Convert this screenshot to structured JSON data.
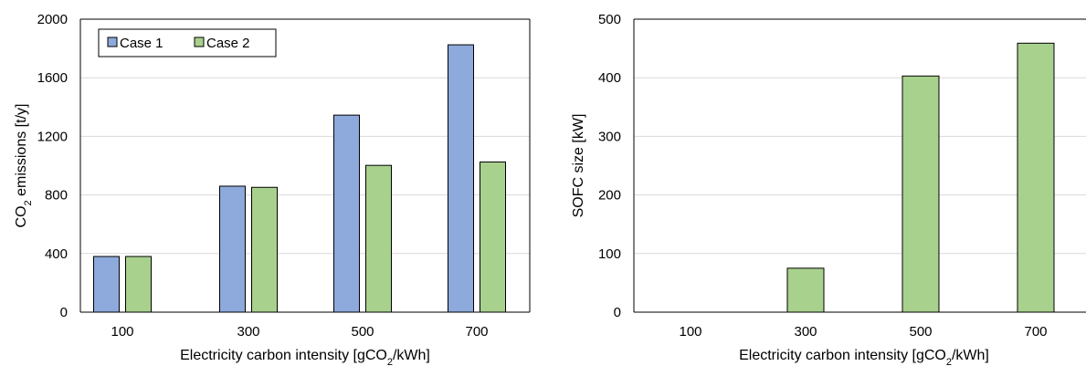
{
  "chart_data": [
    {
      "type": "bar",
      "categories": [
        "100",
        "300",
        "500",
        "700"
      ],
      "series": [
        {
          "name": "Case 1",
          "values": [
            380,
            860,
            1345,
            1825
          ],
          "color": "#8EA9DB"
        },
        {
          "name": "Case 2",
          "values": [
            380,
            852,
            1002,
            1025
          ],
          "color": "#A9D18E"
        }
      ],
      "xlabel": {
        "pre": "Electricity carbon intensity [gCO",
        "sub": "2",
        "post": "/kWh]"
      },
      "ylabel": {
        "pre": "CO",
        "sub": "2",
        "post": " emissions [t/y]"
      },
      "ylim": [
        0,
        2000
      ],
      "yticks": [
        "0",
        "400",
        "800",
        "1200",
        "1600",
        "2000"
      ],
      "grid": true,
      "legend": "top-left"
    },
    {
      "type": "bar",
      "categories": [
        "100",
        "300",
        "500",
        "700"
      ],
      "series": [
        {
          "values": [
            0,
            75,
            403,
            459
          ],
          "color": "#A9D18E"
        }
      ],
      "xlabel": {
        "pre": "Electricity carbon intensity [gCO",
        "sub": "2",
        "post": "/kWh]"
      },
      "ylabel": {
        "pre": "SOFC size [kW]",
        "sub": "",
        "post": ""
      },
      "ylim": [
        0,
        500
      ],
      "yticks": [
        "0",
        "100",
        "200",
        "300",
        "400",
        "500"
      ],
      "grid": true,
      "legend": "none"
    }
  ]
}
